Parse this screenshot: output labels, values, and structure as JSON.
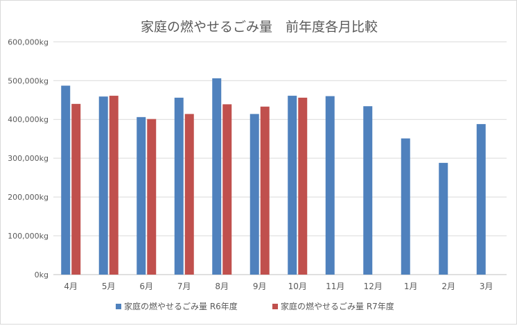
{
  "chart_data": {
    "type": "bar",
    "title": "家庭の燃やせるごみ量　前年度各月比較",
    "categories": [
      "4月",
      "5月",
      "6月",
      "7月",
      "8月",
      "9月",
      "10月",
      "11月",
      "12月",
      "1月",
      "2月",
      "3月"
    ],
    "series": [
      {
        "name": "家庭の燃やせるごみ量 R6年度",
        "color": "#4f81bd",
        "values": [
          487000,
          459000,
          406000,
          456000,
          506000,
          414000,
          461000,
          460000,
          434000,
          351000,
          288000,
          388000
        ]
      },
      {
        "name": "家庭の燃やせるごみ量 R7年度",
        "color": "#c0504d",
        "values": [
          440000,
          461000,
          401000,
          414000,
          439000,
          433000,
          456000,
          null,
          null,
          null,
          null,
          null
        ]
      }
    ],
    "ylim": [
      0,
      600000
    ],
    "yticks": [
      0,
      100000,
      200000,
      300000,
      400000,
      500000,
      600000
    ],
    "ytick_labels": [
      "0kg",
      "100,000kg",
      "200,000kg",
      "300,000kg",
      "400,000kg",
      "500,000kg",
      "600,000kg"
    ],
    "grid": true,
    "legend": "bottom"
  }
}
